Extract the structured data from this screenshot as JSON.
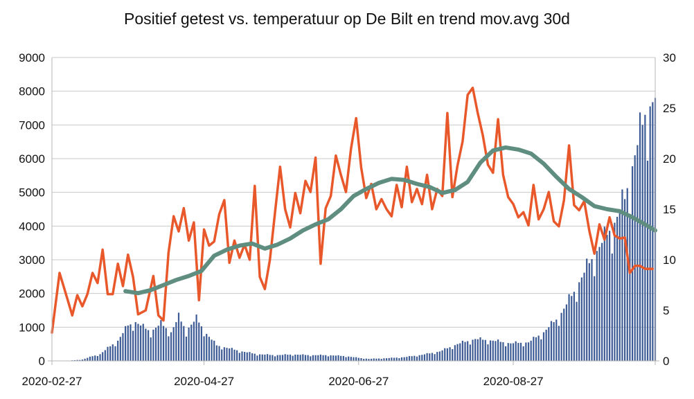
{
  "chart_data": {
    "type": "bar+line",
    "title": "Positief getest vs. temperatuur op De Bilt en trend mov.avg 30d",
    "x_start": "2020-02-27",
    "x_end": "2020-10-22",
    "x_tick_labels": [
      "2020-02-27",
      "2020-04-27",
      "2020-06-27",
      "2020-08-27"
    ],
    "y_left": {
      "range": [
        0,
        9000
      ],
      "ticks": [
        "0",
        "1000",
        "2000",
        "3000",
        "4000",
        "5000",
        "6000",
        "7000",
        "8000",
        "9000"
      ]
    },
    "y_right": {
      "range": [
        0,
        30
      ],
      "ticks": [
        "0",
        "5",
        "10",
        "15",
        "20",
        "25",
        "30"
      ]
    },
    "grid": true,
    "legend": "none",
    "colors": {
      "bars": "#3c5a94",
      "temperature": "#e8582a",
      "trend": "#5f8e80"
    },
    "series": [
      {
        "kind": "bar",
        "axis": "left",
        "color": "#3c5a94",
        "points": [
          [
            "2020-03-05",
            10
          ],
          [
            "2020-03-10",
            40
          ],
          [
            "2020-03-14",
            140
          ],
          [
            "2020-03-17",
            200
          ],
          [
            "2020-03-20",
            380
          ],
          [
            "2020-03-24",
            600
          ],
          [
            "2020-03-28",
            1050
          ],
          [
            "2020-03-31",
            1150
          ],
          [
            "2020-04-03",
            1000
          ],
          [
            "2020-04-06",
            870
          ],
          [
            "2020-04-10",
            1100
          ],
          [
            "2020-04-14",
            850
          ],
          [
            "2020-04-17",
            1300
          ],
          [
            "2020-04-20",
            900
          ],
          [
            "2020-04-24",
            1250
          ],
          [
            "2020-04-28",
            800
          ],
          [
            "2020-05-02",
            460
          ],
          [
            "2020-05-07",
            370
          ],
          [
            "2020-05-12",
            280
          ],
          [
            "2020-05-18",
            200
          ],
          [
            "2020-05-25",
            170
          ],
          [
            "2020-06-01",
            190
          ],
          [
            "2020-06-08",
            170
          ],
          [
            "2020-06-15",
            170
          ],
          [
            "2020-06-22",
            140
          ],
          [
            "2020-06-27",
            90
          ],
          [
            "2020-07-01",
            60
          ],
          [
            "2020-07-08",
            80
          ],
          [
            "2020-07-15",
            110
          ],
          [
            "2020-07-22",
            180
          ],
          [
            "2020-07-29",
            280
          ],
          [
            "2020-08-05",
            500
          ],
          [
            "2020-08-12",
            650
          ],
          [
            "2020-08-19",
            600
          ],
          [
            "2020-08-26",
            520
          ],
          [
            "2020-09-02",
            550
          ],
          [
            "2020-09-08",
            850
          ],
          [
            "2020-09-14",
            1300
          ],
          [
            "2020-09-20",
            2050
          ],
          [
            "2020-09-26",
            2900
          ],
          [
            "2020-10-01",
            3500
          ],
          [
            "2020-10-06",
            4100
          ],
          [
            "2020-10-10",
            4800
          ],
          [
            "2020-10-14",
            6100
          ],
          [
            "2020-10-18",
            7300
          ],
          [
            "2020-10-22",
            7800
          ]
        ]
      },
      {
        "kind": "line",
        "axis": "right",
        "name": "",
        "color": "#e8582a",
        "points": [
          [
            "2020-02-27",
            2.8
          ],
          [
            "2020-03-01",
            8.7
          ],
          [
            "2020-03-04",
            6.2
          ],
          [
            "2020-03-06",
            4.5
          ],
          [
            "2020-03-08",
            6.5
          ],
          [
            "2020-03-10",
            5.4
          ],
          [
            "2020-03-12",
            6.6
          ],
          [
            "2020-03-14",
            8.7
          ],
          [
            "2020-03-16",
            7.7
          ],
          [
            "2020-03-18",
            11.0
          ],
          [
            "2020-03-20",
            6.6
          ],
          [
            "2020-03-22",
            6.6
          ],
          [
            "2020-03-24",
            9.6
          ],
          [
            "2020-03-26",
            7.4
          ],
          [
            "2020-03-28",
            10.5
          ],
          [
            "2020-03-30",
            8.3
          ],
          [
            "2020-04-01",
            4.6
          ],
          [
            "2020-04-04",
            5.0
          ],
          [
            "2020-04-07",
            8.4
          ],
          [
            "2020-04-09",
            4.5
          ],
          [
            "2020-04-11",
            4.0
          ],
          [
            "2020-04-13",
            10.7
          ],
          [
            "2020-04-15",
            14.3
          ],
          [
            "2020-04-17",
            12.8
          ],
          [
            "2020-04-19",
            15.1
          ],
          [
            "2020-04-21",
            11.9
          ],
          [
            "2020-04-23",
            13.7
          ],
          [
            "2020-04-25",
            6.0
          ],
          [
            "2020-04-27",
            13.0
          ],
          [
            "2020-04-29",
            11.4
          ],
          [
            "2020-05-01",
            11.8
          ],
          [
            "2020-05-03",
            14.5
          ],
          [
            "2020-05-05",
            15.9
          ],
          [
            "2020-05-07",
            9.7
          ],
          [
            "2020-05-09",
            11.9
          ],
          [
            "2020-05-11",
            10.2
          ],
          [
            "2020-05-13",
            11.5
          ],
          [
            "2020-05-15",
            10.0
          ],
          [
            "2020-05-17",
            17.3
          ],
          [
            "2020-05-19",
            8.3
          ],
          [
            "2020-05-21",
            7.1
          ],
          [
            "2020-05-23",
            10.0
          ],
          [
            "2020-05-25",
            14.7
          ],
          [
            "2020-05-27",
            19.2
          ],
          [
            "2020-05-29",
            15.0
          ],
          [
            "2020-05-31",
            13.2
          ],
          [
            "2020-06-02",
            16.6
          ],
          [
            "2020-06-04",
            14.6
          ],
          [
            "2020-06-06",
            17.8
          ],
          [
            "2020-06-08",
            16.7
          ],
          [
            "2020-06-10",
            20.1
          ],
          [
            "2020-06-12",
            9.6
          ],
          [
            "2020-06-14",
            15.1
          ],
          [
            "2020-06-16",
            16.3
          ],
          [
            "2020-06-18",
            20.3
          ],
          [
            "2020-06-20",
            18.4
          ],
          [
            "2020-06-22",
            16.7
          ],
          [
            "2020-06-24",
            21.0
          ],
          [
            "2020-06-26",
            24.0
          ],
          [
            "2020-06-28",
            19.1
          ],
          [
            "2020-06-30",
            16.1
          ],
          [
            "2020-07-02",
            17.5
          ],
          [
            "2020-07-04",
            15.0
          ],
          [
            "2020-07-06",
            16.0
          ],
          [
            "2020-07-08",
            15.0
          ],
          [
            "2020-07-10",
            14.3
          ],
          [
            "2020-07-12",
            17.4
          ],
          [
            "2020-07-14",
            15.2
          ],
          [
            "2020-07-16",
            19.2
          ],
          [
            "2020-07-18",
            15.7
          ],
          [
            "2020-07-20",
            17.0
          ],
          [
            "2020-07-22",
            15.5
          ],
          [
            "2020-07-24",
            18.4
          ],
          [
            "2020-07-26",
            15.0
          ],
          [
            "2020-07-28",
            17.0
          ],
          [
            "2020-07-30",
            16.3
          ],
          [
            "2020-08-01",
            24.5
          ],
          [
            "2020-08-03",
            16.2
          ],
          [
            "2020-08-05",
            19.3
          ],
          [
            "2020-08-07",
            21.7
          ],
          [
            "2020-08-09",
            26.3
          ],
          [
            "2020-08-11",
            27.0
          ],
          [
            "2020-08-13",
            24.5
          ],
          [
            "2020-08-15",
            22.3
          ],
          [
            "2020-08-17",
            19.4
          ],
          [
            "2020-08-19",
            18.6
          ],
          [
            "2020-08-21",
            23.9
          ],
          [
            "2020-08-23",
            18.4
          ],
          [
            "2020-08-25",
            16.2
          ],
          [
            "2020-08-27",
            15.5
          ],
          [
            "2020-08-29",
            14.2
          ],
          [
            "2020-08-31",
            14.7
          ],
          [
            "2020-09-02",
            13.4
          ],
          [
            "2020-09-04",
            17.4
          ],
          [
            "2020-09-06",
            14.0
          ],
          [
            "2020-09-08",
            15.0
          ],
          [
            "2020-09-10",
            16.7
          ],
          [
            "2020-09-12",
            13.8
          ],
          [
            "2020-09-14",
            13.3
          ],
          [
            "2020-09-16",
            15.9
          ],
          [
            "2020-09-18",
            21.3
          ],
          [
            "2020-09-20",
            15.4
          ],
          [
            "2020-09-22",
            14.9
          ],
          [
            "2020-09-24",
            15.8
          ],
          [
            "2020-09-26",
            12.9
          ],
          [
            "2020-09-28",
            10.6
          ],
          [
            "2020-09-30",
            13.5
          ],
          [
            "2020-10-02",
            12.0
          ],
          [
            "2020-10-04",
            14.2
          ],
          [
            "2020-10-06",
            12.4
          ],
          [
            "2020-10-08",
            12.1
          ],
          [
            "2020-10-10",
            12.2
          ],
          [
            "2020-10-12",
            8.7
          ],
          [
            "2020-10-14",
            9.4
          ],
          [
            "2020-10-16",
            9.4
          ],
          [
            "2020-10-18",
            9.1
          ],
          [
            "2020-10-21",
            9.1
          ]
        ]
      },
      {
        "kind": "line",
        "axis": "right",
        "name": "",
        "color": "#5f8e80",
        "points": [
          [
            "2020-03-27",
            6.9
          ],
          [
            "2020-04-01",
            6.7
          ],
          [
            "2020-04-06",
            7.0
          ],
          [
            "2020-04-11",
            7.5
          ],
          [
            "2020-04-16",
            8.0
          ],
          [
            "2020-04-21",
            8.4
          ],
          [
            "2020-04-26",
            8.9
          ],
          [
            "2020-05-01",
            10.4
          ],
          [
            "2020-05-06",
            11.0
          ],
          [
            "2020-05-11",
            11.4
          ],
          [
            "2020-05-16",
            11.6
          ],
          [
            "2020-05-21",
            11.1
          ],
          [
            "2020-05-26",
            11.5
          ],
          [
            "2020-05-31",
            12.1
          ],
          [
            "2020-06-05",
            12.9
          ],
          [
            "2020-06-10",
            13.5
          ],
          [
            "2020-06-15",
            14.0
          ],
          [
            "2020-06-20",
            15.0
          ],
          [
            "2020-06-25",
            16.3
          ],
          [
            "2020-06-30",
            17.0
          ],
          [
            "2020-07-05",
            17.6
          ],
          [
            "2020-07-10",
            18.0
          ],
          [
            "2020-07-15",
            17.9
          ],
          [
            "2020-07-20",
            17.5
          ],
          [
            "2020-07-25",
            17.2
          ],
          [
            "2020-07-30",
            16.6
          ],
          [
            "2020-08-04",
            16.9
          ],
          [
            "2020-08-09",
            17.7
          ],
          [
            "2020-08-14",
            19.6
          ],
          [
            "2020-08-19",
            20.8
          ],
          [
            "2020-08-24",
            21.1
          ],
          [
            "2020-08-29",
            20.9
          ],
          [
            "2020-09-03",
            20.5
          ],
          [
            "2020-09-08",
            19.5
          ],
          [
            "2020-09-13",
            18.2
          ],
          [
            "2020-09-18",
            17.0
          ],
          [
            "2020-09-23",
            16.2
          ],
          [
            "2020-09-28",
            15.3
          ],
          [
            "2020-10-03",
            15.0
          ],
          [
            "2020-10-08",
            14.8
          ],
          [
            "2020-10-13",
            14.2
          ],
          [
            "2020-10-18",
            13.5
          ],
          [
            "2020-10-22",
            12.9
          ]
        ]
      }
    ]
  }
}
